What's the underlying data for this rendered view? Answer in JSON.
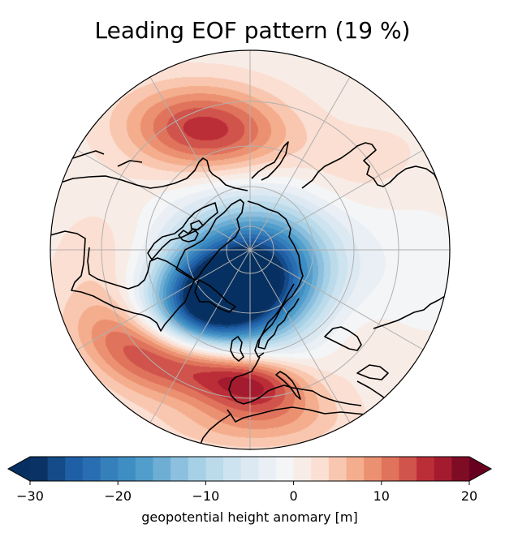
{
  "figure": {
    "title": "Leading EOF pattern (19 %)",
    "projection": "north-polar-stereographic",
    "variable": "geopotential height anomaly",
    "explained_variance_percent": 19
  },
  "map": {
    "gridlines": {
      "latitude_circles_deg": [
        80,
        70,
        60,
        50
      ],
      "meridian_spacing_deg": 30,
      "color": "#b0b0b0"
    },
    "coastline_color": "#000000",
    "features": [
      {
        "name": "negative-center-iceland-greenland",
        "sign": "negative",
        "approx_min_m": -30
      },
      {
        "name": "positive-center-north-pacific",
        "sign": "positive",
        "approx_max_m": 14
      },
      {
        "name": "positive-center-azores-mediterranean",
        "sign": "positive",
        "approx_max_m": 18
      }
    ]
  },
  "colorbar": {
    "label": "geopotential height anomary [m]",
    "vmin": -30,
    "vmax": 20,
    "step": 2,
    "extend": "both",
    "orientation": "horizontal",
    "ticks": [
      -30,
      -20,
      -10,
      0,
      10,
      20
    ],
    "tick_labels": [
      "−30",
      "−20",
      "−10",
      "0",
      "10",
      "20"
    ],
    "under_color": "#053061",
    "over_color": "#67001f",
    "colors": [
      "#0a3265",
      "#144b88",
      "#1f5fa6",
      "#2a6eb2",
      "#357fbb",
      "#3f8ec3",
      "#519dcb",
      "#6eaed4",
      "#8cc0de",
      "#a6d0e6",
      "#bbdbeb",
      "#cde3ef",
      "#dce9f2",
      "#e9eff4",
      "#f4f5f7",
      "#f8ece6",
      "#fbdfd2",
      "#f9c7b0",
      "#f4ae8d",
      "#eb9172",
      "#e0735c",
      "#d0544b",
      "#bc2e37",
      "#a41b2f",
      "#7f0c25"
    ]
  },
  "chart_data": {
    "type": "heatmap",
    "title": "Leading EOF pattern (19 %)",
    "xlabel": "",
    "ylabel": "",
    "colorbar_label": "geopotential height anomary [m]",
    "value_range": [
      -30,
      20
    ],
    "levels_step": 2,
    "colorbar_ticks": [
      -30,
      -20,
      -10,
      0,
      10,
      20
    ],
    "centers": [
      {
        "region": "Iceland / Greenland-Norwegian Sea",
        "value_m": -30
      },
      {
        "region": "North Pacific (south of Aleutians)",
        "value_m": 14
      },
      {
        "region": "Azores / Iberia / Western Mediterranean",
        "value_m": 18
      }
    ],
    "grid": true,
    "legend": "bottom"
  }
}
